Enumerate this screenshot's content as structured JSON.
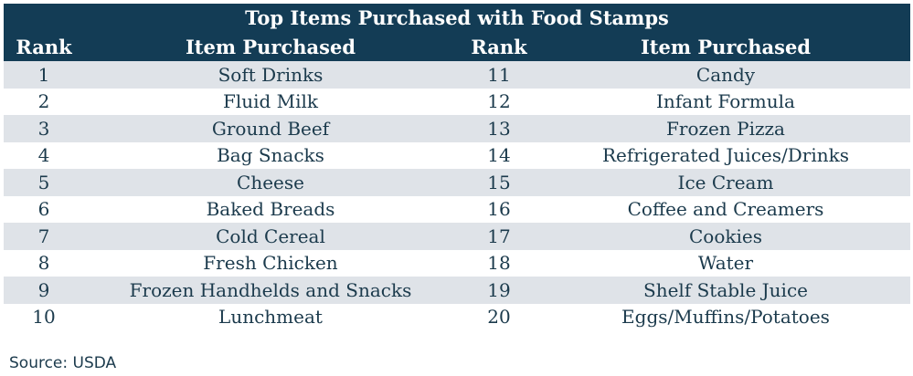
{
  "chart_data": {
    "type": "table",
    "title": "Top Items Purchased with Food Stamps",
    "columns": [
      "Rank",
      "Item Purchased",
      "Rank",
      "Item Purchased"
    ],
    "rows": [
      [
        "1",
        "Soft Drinks",
        "11",
        "Candy"
      ],
      [
        "2",
        "Fluid Milk",
        "12",
        "Infant Formula"
      ],
      [
        "3",
        "Ground Beef",
        "13",
        "Frozen Pizza"
      ],
      [
        "4",
        "Bag Snacks",
        "14",
        "Refrigerated Juices/Drinks"
      ],
      [
        "5",
        "Cheese",
        "15",
        "Ice Cream"
      ],
      [
        "6",
        "Baked Breads",
        "16",
        "Coffee and Creamers"
      ],
      [
        "7",
        "Cold Cereal",
        "17",
        "Cookies"
      ],
      [
        "8",
        "Fresh Chicken",
        "18",
        "Water"
      ],
      [
        "9",
        "Frozen Handhelds and Snacks",
        "19",
        "Shelf Stable Juice"
      ],
      [
        "10",
        "Lunchmeat",
        "20",
        "Eggs/Muffins/Potatoes"
      ]
    ],
    "source": "Source: USDA",
    "colors": {
      "header_bg": "#133c55",
      "header_text": "#ffffff",
      "stripe": "#dfe3e8",
      "body_text": "#1b3a4c"
    }
  }
}
